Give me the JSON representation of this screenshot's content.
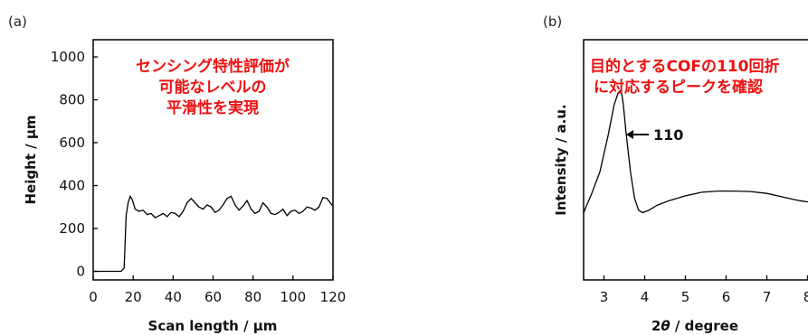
{
  "chart_data": [
    {
      "type": "line",
      "panel_label": "(a)",
      "xlabel": "Scan length / µm",
      "ylabel": "Height / µm",
      "xlim": [
        0,
        120
      ],
      "ylim": [
        -40,
        1080
      ],
      "xticks": [
        "0",
        "20",
        "40",
        "60",
        "80",
        "100",
        "120"
      ],
      "yticks": [
        "0",
        "200",
        "400",
        "600",
        "800",
        "1000"
      ],
      "annotation": [
        "センシング特性評価が",
        "可能なレベルの",
        "平滑性を実現"
      ],
      "series": [
        {
          "x": [
            0,
            14,
            15.5,
            16.5,
            17.5,
            18.5,
            19.5,
            21,
            23,
            25,
            27,
            29,
            31,
            33,
            35,
            37,
            39,
            41,
            43,
            45,
            47,
            49,
            51,
            53,
            55,
            57,
            59,
            61,
            63,
            65,
            67,
            69,
            71,
            73,
            75,
            77,
            79,
            81,
            83,
            85,
            87,
            89,
            91,
            93,
            95,
            97,
            99,
            101,
            103,
            105,
            107,
            109,
            111,
            113,
            115,
            117,
            119,
            120
          ],
          "y": [
            0,
            0,
            15,
            260,
            320,
            350,
            335,
            290,
            280,
            285,
            265,
            270,
            250,
            260,
            270,
            255,
            275,
            270,
            255,
            280,
            320,
            340,
            320,
            300,
            290,
            310,
            300,
            275,
            285,
            310,
            340,
            350,
            310,
            285,
            305,
            330,
            290,
            270,
            280,
            320,
            300,
            270,
            265,
            275,
            290,
            260,
            280,
            285,
            270,
            280,
            300,
            295,
            285,
            300,
            345,
            340,
            315,
            305
          ]
        }
      ]
    },
    {
      "type": "line",
      "panel_label": "(b)",
      "xlabel": "2θ / degree",
      "ylabel": "Intensity / a.u.",
      "xlim": [
        2.5,
        8.5
      ],
      "ylim": [
        0,
        100
      ],
      "xticks": [
        "3",
        "4",
        "5",
        "6",
        "7",
        "8"
      ],
      "annotation": [
        "目的とするCOFの110回折",
        "に対応するピークを確認"
      ],
      "peak_label": "110",
      "series": [
        {
          "x": [
            2.5,
            2.7,
            2.9,
            3.1,
            3.25,
            3.35,
            3.42,
            3.47,
            3.55,
            3.65,
            3.75,
            3.85,
            3.95,
            4.1,
            4.3,
            4.6,
            5.0,
            5.4,
            5.8,
            6.2,
            6.6,
            7.0,
            7.4,
            7.8,
            8.2,
            8.5
          ],
          "y": [
            28,
            36,
            45,
            60,
            73,
            78,
            79,
            74,
            60,
            45,
            34,
            29,
            28,
            29,
            31,
            33,
            35,
            36.5,
            37,
            37,
            36.8,
            36,
            34.5,
            33,
            32,
            31
          ]
        }
      ]
    }
  ]
}
